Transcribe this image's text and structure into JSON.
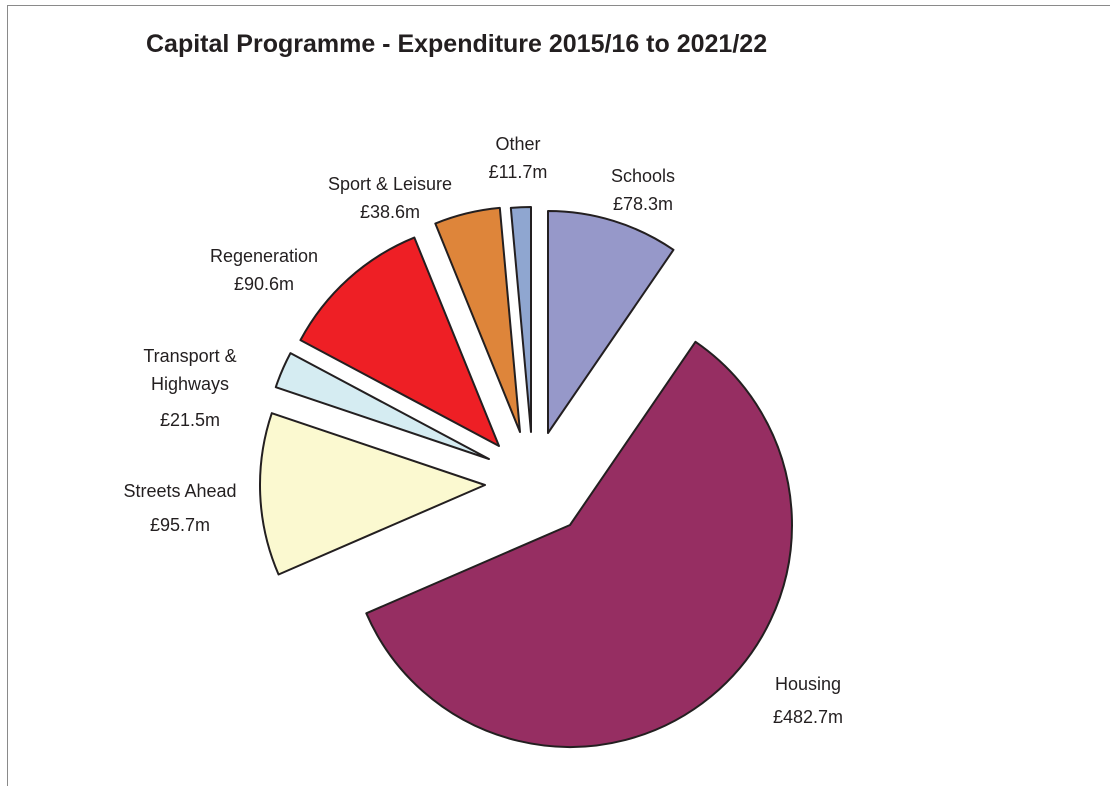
{
  "chart_data": {
    "type": "pie",
    "title": "Capital Programme - Expenditure 2015/16 to 2021/22",
    "unit": "£m",
    "exploded": true,
    "start_direction": "12 o'clock, clockwise",
    "slices": [
      {
        "name": "Housing",
        "value": 482.7,
        "display": "£482.7m",
        "color": "#962e62",
        "label_lines": [
          "Housing"
        ]
      },
      {
        "name": "Streets Ahead",
        "value": 95.7,
        "display": "£95.7m",
        "color": "#fbf9d0",
        "label_lines": [
          "Streets Ahead"
        ]
      },
      {
        "name": "Transport & Highways",
        "value": 21.5,
        "display": "£21.5m",
        "color": "#d5ecf2",
        "label_lines": [
          "Transport &",
          "Highways"
        ]
      },
      {
        "name": "Regeneration",
        "value": 90.6,
        "display": "£90.6m",
        "color": "#ee1f25",
        "label_lines": [
          "Regeneration"
        ]
      },
      {
        "name": "Sport & Leisure",
        "value": 38.6,
        "display": "£38.6m",
        "color": "#de853a",
        "label_lines": [
          "Sport & Leisure"
        ]
      },
      {
        "name": "Other",
        "value": 11.7,
        "display": "£11.7m",
        "color": "#8fa6d0",
        "label_lines": [
          "Other"
        ]
      },
      {
        "name": "Schools",
        "value": 78.3,
        "display": "£78.3m",
        "color": "#9698c9",
        "label_lines": [
          "Schools"
        ]
      }
    ]
  }
}
